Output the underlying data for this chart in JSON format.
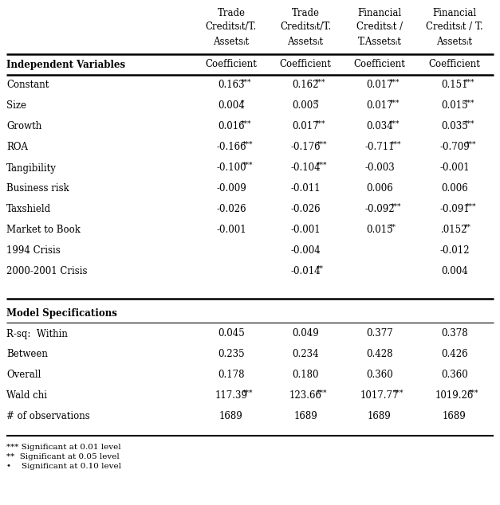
{
  "col_headers_line1": [
    "Trade",
    "Trade",
    "Financial",
    "Financial"
  ],
  "col_headers_line2": [
    "Creditsᵢt/T.",
    "Creditsᵢt/T.",
    "Creditsᵢt /",
    "Creditsᵢt / T."
  ],
  "col_headers_line3": [
    "Assetsᵢt",
    "Assetsᵢt",
    "T.Assetsᵢt",
    "Assetsᵢt"
  ],
  "subheader_label": "Independent Variables",
  "subheader_cols": [
    "Coefficient",
    "Coefficient",
    "Coefficient",
    "Coefficient"
  ],
  "rows": [
    [
      "Constant",
      "0.163",
      "***",
      "0.162",
      "***",
      "0.017",
      "***",
      "0.151",
      "***"
    ],
    [
      "Size",
      "0.004",
      "*",
      "0.005",
      "*",
      "0.017",
      "***",
      "0.015",
      "***"
    ],
    [
      "Growth",
      "0.016",
      "***",
      "0.017",
      "***",
      "0.034",
      "***",
      "0.035",
      "***"
    ],
    [
      "ROA",
      "-0.166",
      "***",
      "-0.176",
      "***",
      "-0.711",
      "***",
      "-0.709",
      "***"
    ],
    [
      "Tangibility",
      "-0.100",
      "***",
      "-0.104",
      "***",
      "-0.003",
      "",
      "-0.001",
      ""
    ],
    [
      "Business risk",
      "-0.009",
      "",
      "-0.011",
      "",
      "0.006",
      "",
      "0.006",
      ""
    ],
    [
      "Taxshield",
      "-0.026",
      "",
      "-0.026",
      "",
      "-0.092",
      "***",
      "-0.091",
      "***"
    ],
    [
      "Market to Book",
      "-0.001",
      "",
      "-0.001",
      "",
      "0.015",
      "**",
      ".0152",
      "**"
    ],
    [
      "1994 Crisis",
      "",
      "",
      "-0.004",
      "",
      "",
      "",
      "-0.012",
      ""
    ],
    [
      "2000-2001 Crisis",
      "",
      "",
      "-0.014",
      "**",
      "",
      "",
      "0.004",
      ""
    ]
  ],
  "model_label": "Model Specifications",
  "model_rows": [
    [
      "R-sq:  Within",
      "0.045",
      "",
      "0.049",
      "",
      "0.377",
      "",
      "0.378",
      ""
    ],
    [
      "Between",
      "0.235",
      "",
      "0.234",
      "",
      "0.428",
      "",
      "0.426",
      ""
    ],
    [
      "Overall",
      "0.178",
      "",
      "0.180",
      "",
      "0.360",
      "",
      "0.360",
      ""
    ],
    [
      "Wald chi",
      "117.39",
      "***",
      "123.66",
      "***",
      "1017.77",
      "***",
      "1019.26",
      "***"
    ],
    [
      "# of observations",
      "1689",
      "",
      "1689",
      "",
      "1689",
      "",
      "1689",
      ""
    ]
  ],
  "footnote1": "*** Significant at 0.01 level",
  "footnote2": "**  Significant at 0.05 level",
  "footnote3": "•    Significant at 0.10 level",
  "bg_color": "#ffffff",
  "text_color": "#000000"
}
